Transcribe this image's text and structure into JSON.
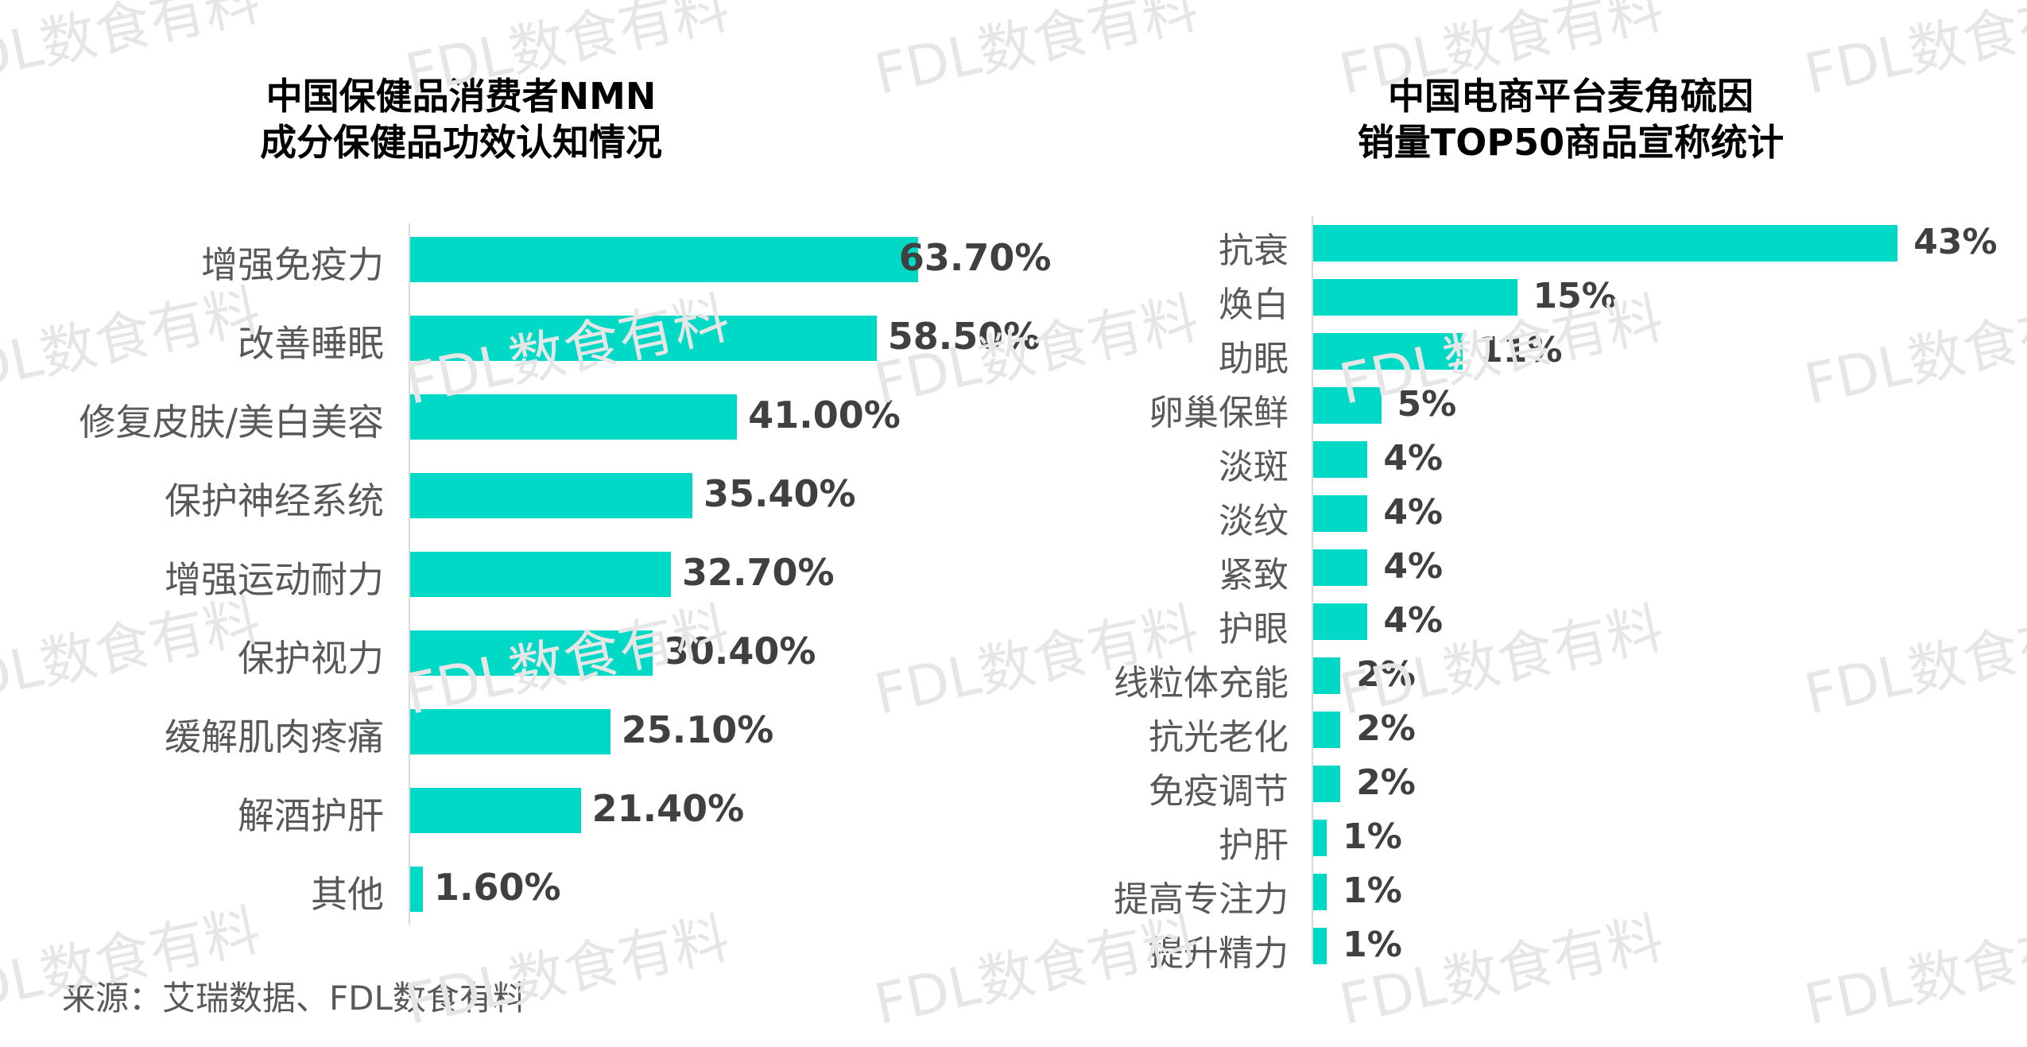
{
  "watermark": "FDL数食有料",
  "source": "来源：艾瑞数据、FDL数食有料",
  "chart_data": [
    {
      "type": "bar",
      "orientation": "horizontal",
      "title": [
        "中国保健品消费者NMN",
        "成分保健品功效认知情况"
      ],
      "categories": [
        "增强免疫力",
        "改善睡眠",
        "修复皮肤/美白美容",
        "保护神经系统",
        "增强运动耐力",
        "保护视力",
        "缓解肌肉疼痛",
        "解酒护肝",
        "其他"
      ],
      "values": [
        63.7,
        58.5,
        41.0,
        35.4,
        32.7,
        30.4,
        25.1,
        21.4,
        1.6
      ],
      "value_labels": [
        "63.70%",
        "58.50%",
        "41.00%",
        "35.40%",
        "32.70%",
        "30.40%",
        "25.10%",
        "21.40%",
        "1.60%"
      ],
      "unit": "%",
      "color": "#00d9c6"
    },
    {
      "type": "bar",
      "orientation": "horizontal",
      "title": [
        "中国电商平台麦角硫因",
        "销量TOP50商品宣称统计"
      ],
      "categories": [
        "抗衰",
        "焕白",
        "助眠",
        "卵巢保鲜",
        "淡斑",
        "淡纹",
        "紧致",
        "护眼",
        "线粒体充能",
        "抗光老化",
        "免疫调节",
        "护肝",
        "提高专注力",
        "提升精力"
      ],
      "values": [
        43,
        15,
        11,
        5,
        4,
        4,
        4,
        4,
        2,
        2,
        2,
        1,
        1,
        1
      ],
      "value_labels": [
        "43%",
        "15%",
        "11%",
        "5%",
        "4%",
        "4%",
        "4%",
        "4%",
        "2%",
        "2%",
        "2%",
        "1%",
        "1%",
        "1%"
      ],
      "unit": "%",
      "color": "#00d9c6"
    }
  ]
}
